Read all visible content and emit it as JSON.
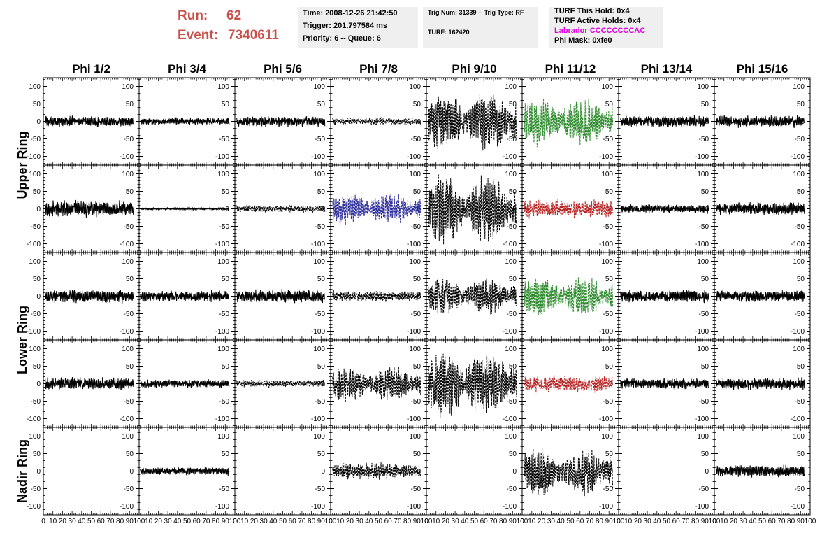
{
  "header": {
    "run_label": "Run:",
    "run_value": "62",
    "event_label": "Event:",
    "event_value": "7340611",
    "time": "Time: 2008-12-26 21:42:50",
    "trigger": "Trigger: 201.797584 ms",
    "priority": "Priority: 6 -- Queue: 6",
    "trig_num": "Trig Num: 31339 -- Trig Type: RF",
    "turf": "TURF: 162420",
    "turf_hold": "TURF This Hold: 0x4",
    "turf_active": "TURF Active Holds: 0x4",
    "labrador": "Labrador CCCCCCCCAC",
    "phi_mask": "Phi Mask: 0xfe0",
    "labrador_color": "#e000e0"
  },
  "chart_data": {
    "type": "line",
    "columns": [
      "Phi 1/2",
      "Phi 3/4",
      "Phi 5/6",
      "Phi 7/8",
      "Phi 9/10",
      "Phi 11/12",
      "Phi 13/14",
      "Phi 15/16"
    ],
    "rows": [
      {
        "label": "Upper Ring",
        "groups": [
          "Upper Ring",
          "Upper Ring"
        ]
      },
      {
        "label": "Upper Ring",
        "groups": [
          "Upper Ring",
          "Upper Ring"
        ]
      },
      {
        "label": "Lower Ring",
        "groups": [
          "Lower Ring",
          "Lower Ring"
        ]
      },
      {
        "label": "Lower Ring",
        "groups": [
          "Lower Ring",
          "Lower Ring"
        ]
      },
      {
        "label": "Nadir Ring",
        "groups": [
          "Nadir Ring"
        ]
      }
    ],
    "group_labels": [
      "Upper Ring",
      "Lower Ring",
      "Nadir Ring"
    ],
    "xlim": [
      0,
      100
    ],
    "ylim": [
      -125,
      125
    ],
    "yticks": [
      -100,
      -50,
      0,
      50,
      100
    ],
    "xtick_labels": [
      "0",
      "10",
      "20",
      "30",
      "40",
      "50",
      "60",
      "70",
      "80",
      "90",
      "100"
    ],
    "grid": false,
    "colors": {
      "normal": "#000000",
      "green": "#2a8a2a",
      "blue": "#2c2c9c",
      "red": "#b82020"
    },
    "panels": [
      [
        {
          "amp": 18,
          "style": "solid",
          "color": "normal"
        },
        {
          "amp": 12,
          "style": "solid",
          "color": "normal"
        },
        {
          "amp": 18,
          "style": "solid",
          "color": "normal"
        },
        {
          "amp": 12,
          "style": "dashed",
          "color": "normal"
        },
        {
          "amp": 90,
          "style": "dashed",
          "color": "normal"
        },
        {
          "amp": 75,
          "style": "dashed",
          "color": "green"
        },
        {
          "amp": 20,
          "style": "solid",
          "color": "normal"
        },
        {
          "amp": 20,
          "style": "solid",
          "color": "normal"
        }
      ],
      [
        {
          "amp": 28,
          "style": "solid",
          "color": "normal"
        },
        {
          "amp": 4,
          "style": "solid",
          "color": "normal"
        },
        {
          "amp": 12,
          "style": "dashed",
          "color": "normal"
        },
        {
          "amp": 50,
          "style": "dashed",
          "color": "blue"
        },
        {
          "amp": 105,
          "style": "dashed",
          "color": "normal"
        },
        {
          "amp": 30,
          "style": "dashed",
          "color": "red"
        },
        {
          "amp": 15,
          "style": "solid",
          "color": "normal"
        },
        {
          "amp": 22,
          "style": "solid",
          "color": "normal"
        }
      ],
      [
        {
          "amp": 22,
          "style": "solid",
          "color": "normal"
        },
        {
          "amp": 18,
          "style": "solid",
          "color": "normal"
        },
        {
          "amp": 22,
          "style": "solid",
          "color": "normal"
        },
        {
          "amp": 18,
          "style": "dashed",
          "color": "normal"
        },
        {
          "amp": 60,
          "style": "dashed",
          "color": "normal"
        },
        {
          "amp": 60,
          "style": "dashed",
          "color": "green"
        },
        {
          "amp": 22,
          "style": "solid",
          "color": "normal"
        },
        {
          "amp": 20,
          "style": "solid",
          "color": "normal"
        }
      ],
      [
        {
          "amp": 22,
          "style": "solid",
          "color": "normal"
        },
        {
          "amp": 14,
          "style": "solid",
          "color": "normal"
        },
        {
          "amp": 12,
          "style": "dashed",
          "color": "normal"
        },
        {
          "amp": 55,
          "style": "dashed",
          "color": "normal"
        },
        {
          "amp": 105,
          "style": "dashed",
          "color": "normal"
        },
        {
          "amp": 28,
          "style": "dashed",
          "color": "red"
        },
        {
          "amp": 18,
          "style": "solid",
          "color": "normal"
        },
        {
          "amp": 20,
          "style": "solid",
          "color": "normal"
        }
      ],
      [
        {
          "amp": 0,
          "style": "solid",
          "color": "normal"
        },
        {
          "amp": 14,
          "style": "solid",
          "color": "normal"
        },
        {
          "amp": 0,
          "style": "solid",
          "color": "normal"
        },
        {
          "amp": 28,
          "style": "dashed",
          "color": "normal"
        },
        {
          "amp": 0,
          "style": "solid",
          "color": "normal"
        },
        {
          "amp": 75,
          "style": "dashed",
          "color": "normal"
        },
        {
          "amp": 0,
          "style": "solid",
          "color": "normal"
        },
        {
          "amp": 20,
          "style": "solid",
          "color": "normal"
        }
      ]
    ]
  }
}
